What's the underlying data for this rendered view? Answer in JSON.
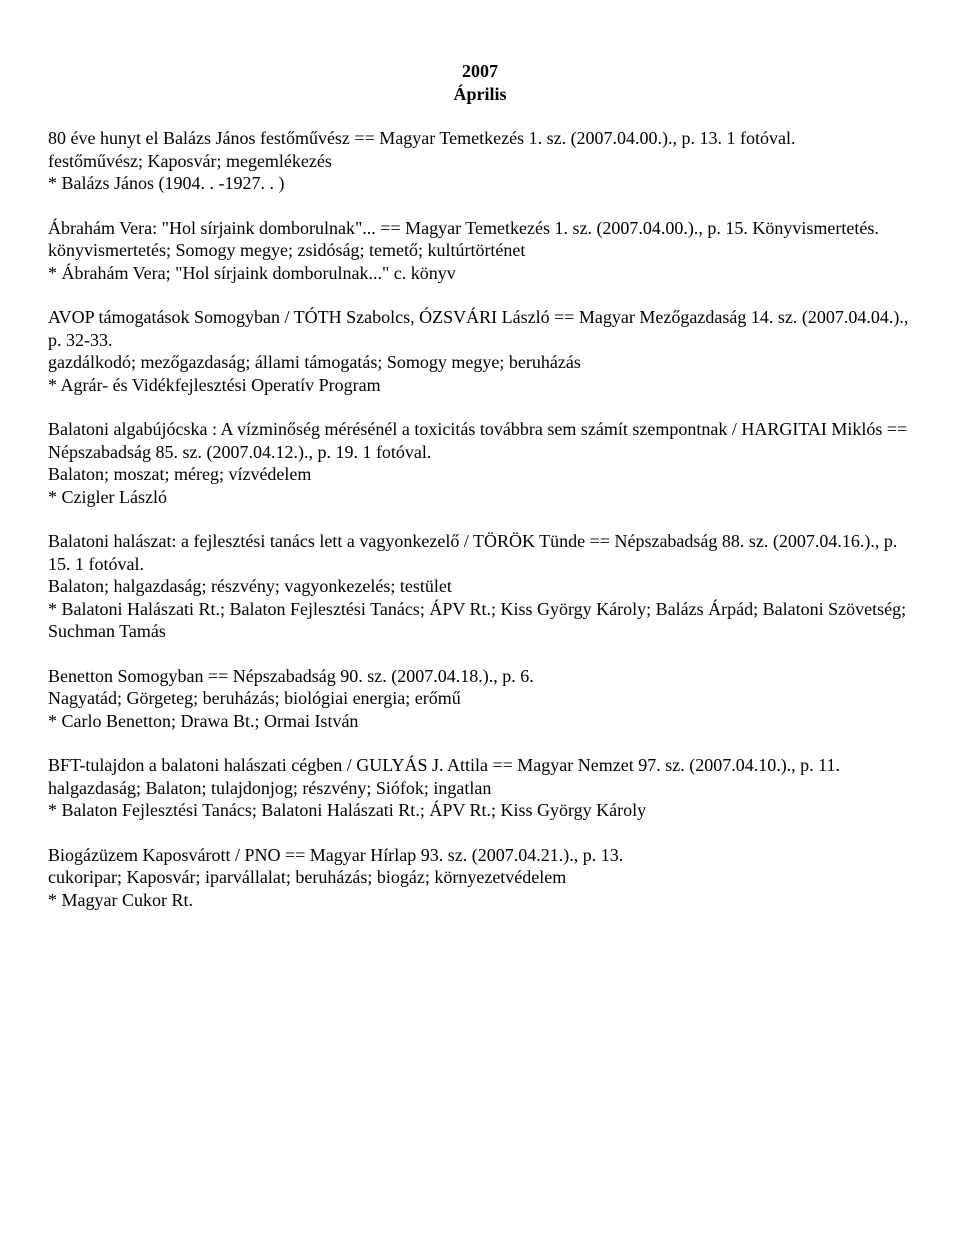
{
  "header": {
    "year": "2007",
    "month": "Április"
  },
  "entries": [
    {
      "lines": [
        "80 éve hunyt el Balázs János festőművész == Magyar Temetkezés 1. sz. (2007.04.00.)., p. 13. 1 fotóval.",
        "festőművész; Kaposvár; megemlékezés",
        "* Balázs János (1904. . -1927. . )"
      ]
    },
    {
      "lines": [
        "Ábrahám Vera: \"Hol sírjaink domborulnak\"... == Magyar Temetkezés 1. sz. (2007.04.00.)., p. 15. Könyvismertetés.",
        "könyvismertetés; Somogy megye; zsidóság; temető; kultúrtörténet",
        "* Ábrahám Vera; \"Hol sírjaink domborulnak...\" c. könyv"
      ]
    },
    {
      "lines": [
        "AVOP támogatások Somogyban / TÓTH Szabolcs, ÓZSVÁRI László == Magyar Mezőgazdaság 14. sz. (2007.04.04.)., p. 32-33.",
        "gazdálkodó; mezőgazdaság; állami támogatás; Somogy megye; beruházás",
        "* Agrár- és Vidékfejlesztési Operatív Program"
      ]
    },
    {
      "lines": [
        "Balatoni algabújócska : A vízminőség mérésénél a toxicitás továbbra sem számít szempontnak / HARGITAI Miklós ==",
        "Népszabadság 85. sz. (2007.04.12.)., p. 19. 1 fotóval.",
        "Balaton; moszat; méreg; vízvédelem",
        "* Czigler László"
      ]
    },
    {
      "lines": [
        "Balatoni halászat: a fejlesztési tanács lett a vagyonkezelő / TÖRÖK Tünde == Népszabadság 88. sz. (2007.04.16.)., p. 15. 1 fotóval.",
        "Balaton; halgazdaság; részvény; vagyonkezelés; testület",
        "* Balatoni Halászati Rt.; Balaton Fejlesztési Tanács; ÁPV Rt.; Kiss György Károly; Balázs Árpád; Balatoni Szövetség; Suchman Tamás"
      ]
    },
    {
      "lines": [
        "Benetton Somogyban == Népszabadság 90. sz. (2007.04.18.)., p. 6.",
        "Nagyatád; Görgeteg; beruházás; biológiai energia; erőmű",
        "* Carlo Benetton; Drawa Bt.; Ormai István"
      ]
    },
    {
      "lines": [
        "BFT-tulajdon a balatoni halászati cégben / GULYÁS J. Attila == Magyar Nemzet 97. sz. (2007.04.10.)., p. 11.",
        "halgazdaság; Balaton; tulajdonjog; részvény; Siófok; ingatlan",
        "* Balaton Fejlesztési Tanács; Balatoni Halászati Rt.; ÁPV Rt.; Kiss György Károly"
      ]
    },
    {
      "lines": [
        "Biogázüzem Kaposvárott / PNO == Magyar Hírlap 93. sz. (2007.04.21.)., p. 13.",
        "cukoripar; Kaposvár; iparvállalat; beruházás; biogáz; környezetvédelem",
        "* Magyar Cukor Rt."
      ]
    }
  ]
}
